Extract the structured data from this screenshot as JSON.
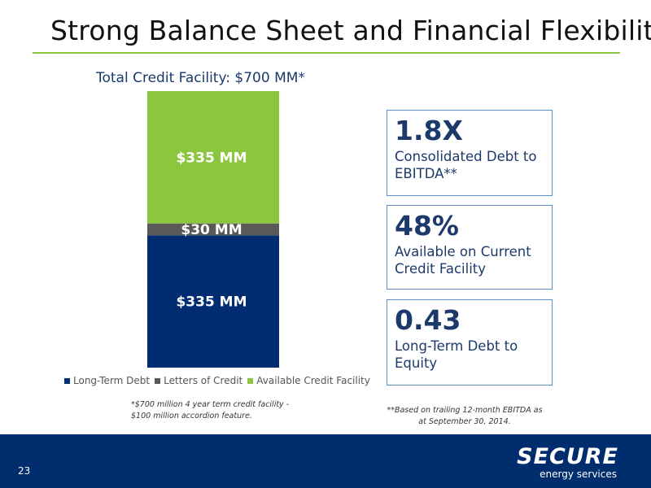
{
  "title": "Strong Balance Sheet and Financial Flexibility",
  "chart_data": {
    "type": "bar",
    "stacked": true,
    "title": "Total Credit Facility: $700 MM*",
    "xlabel": "",
    "ylabel": "",
    "ylim": [
      0,
      700
    ],
    "categories": [
      ""
    ],
    "series": [
      {
        "name": "Long-Term Debt",
        "values": [
          335
        ],
        "label": "$335 MM",
        "color": "#002d72"
      },
      {
        "name": "Letters of Credit",
        "values": [
          30
        ],
        "label": "$30 MM",
        "color": "#595959"
      },
      {
        "name": "Available Credit Facility",
        "values": [
          335
        ],
        "label": "$335 MM",
        "color": "#8cc63f"
      }
    ],
    "legend_position": "bottom",
    "grid": false
  },
  "footnotes": {
    "left": "*$700 million 4 year term credit facility - $100 million accordion feature.",
    "right": "**Based on trailing 12-month EBITDA as at September 30, 2014."
  },
  "stats": [
    {
      "value": "1.8X",
      "desc": "Consolidated Debt to EBITDA**"
    },
    {
      "value": "48%",
      "desc": "Available on Current Credit Facility"
    },
    {
      "value": "0.43",
      "desc": "Long-Term Debt to Equity"
    }
  ],
  "footer": {
    "page_number": "23",
    "logo_text": "SECURE",
    "logo_subtext": "energy services",
    "background": "#002d6e"
  },
  "colors": {
    "accent_green": "#8cc63f",
    "navy": "#1b3a6b"
  }
}
